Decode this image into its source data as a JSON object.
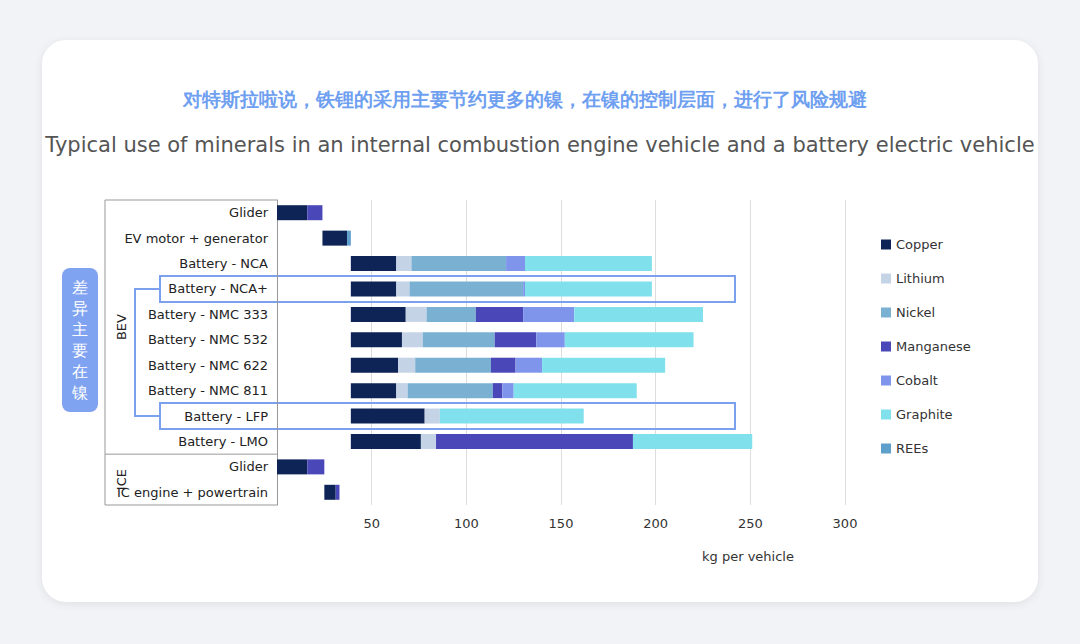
{
  "chart_data": {
    "type": "bar",
    "orientation": "horizontal",
    "stacked": true,
    "title": "对特斯拉啦说，铁锂的采用主要节约更多的镍，在镍的控制层面，进行了风险规避",
    "subtitle": "Typical use of minerals in an internal combustion engine vehicle and a battery electric vehicle",
    "xlabel": "kg per vehicle",
    "categories": [
      "Glider",
      "EV motor + generator",
      "Battery - NCA",
      "Battery - NCA+",
      "Battery - NMC 333",
      "Battery - NMC 532",
      "Battery - NMC 622",
      "Battery - NMC 811",
      "Battery - LFP",
      "Battery - LMO",
      "Glider",
      "IC engine + powertrain"
    ],
    "groups": [
      {
        "name": "BEV",
        "categories": [
          "Glider",
          "EV motor + generator",
          "Battery - NCA",
          "Battery - NCA+",
          "Battery - NMC 333",
          "Battery - NMC 532",
          "Battery - NMC 622",
          "Battery - NMC 811",
          "Battery - LFP",
          "Battery - LMO"
        ]
      },
      {
        "name": "ICE",
        "categories": [
          "Glider",
          "IC engine + powertrain"
        ]
      }
    ],
    "series": [
      {
        "name": "Copper",
        "color": "#0f2456",
        "values": [
          16,
          13,
          24,
          24,
          29,
          27,
          25,
          24,
          39,
          37,
          16,
          6
        ]
      },
      {
        "name": "Lithium",
        "color": "#c5d3e6",
        "values": [
          0,
          0,
          8,
          7,
          11,
          11,
          9,
          6,
          8,
          8,
          0,
          0
        ]
      },
      {
        "name": "Nickel",
        "color": "#7ab1d3",
        "values": [
          0,
          0,
          50,
          60,
          26,
          38,
          40,
          45,
          0,
          0,
          0,
          0
        ]
      },
      {
        "name": "Manganese",
        "color": "#4a47b8",
        "values": [
          8,
          0,
          0,
          0,
          25,
          22,
          13,
          5,
          0,
          104,
          9,
          2
        ]
      },
      {
        "name": "Cobalt",
        "color": "#7f95ec",
        "values": [
          0,
          0,
          10,
          1,
          27,
          15,
          14,
          6,
          0,
          0,
          0,
          0
        ]
      },
      {
        "name": "Graphite",
        "color": "#80e1ec",
        "values": [
          0,
          0,
          67,
          67,
          68,
          68,
          65,
          65,
          76,
          63,
          0,
          0
        ]
      },
      {
        "name": "REEs",
        "color": "#5f9fcb",
        "values": [
          0,
          2,
          0,
          0,
          0,
          0,
          0,
          0,
          0,
          0,
          0,
          0
        ]
      }
    ],
    "xlim": [
      0,
      300
    ],
    "xticks": [
      50,
      100,
      150,
      200,
      250,
      300
    ],
    "grid": true,
    "legend": "right",
    "annotations": [
      {
        "text": "差异主要在镍",
        "categories": [
          "Battery - NCA+",
          "Battery - LFP"
        ]
      }
    ]
  }
}
